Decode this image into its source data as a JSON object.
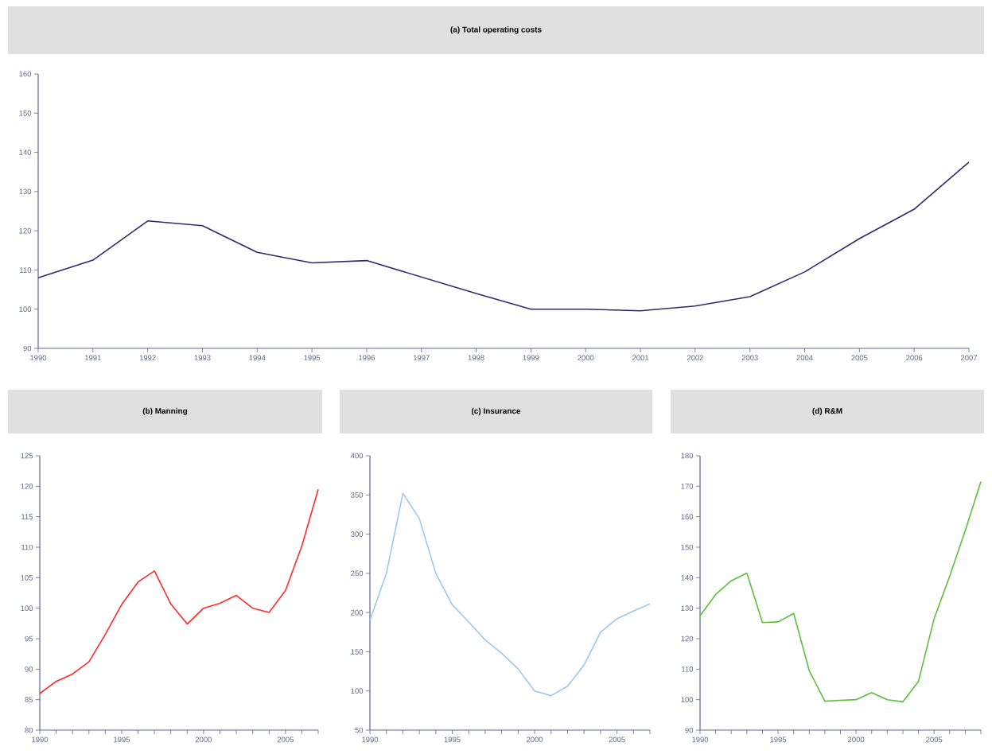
{
  "chart_data": [
    {
      "type": "line",
      "title": "(a) Total operating costs",
      "color": "#2e2a6e",
      "x": [
        1990,
        1991,
        1992,
        1993,
        1994,
        1995,
        1996,
        1997,
        1998,
        1999,
        2000,
        2001,
        2002,
        2003,
        2004,
        2005,
        2006,
        2007
      ],
      "values": [
        108,
        112.5,
        122.5,
        121.3,
        114.5,
        111.8,
        112.4,
        108.2,
        104,
        100,
        100,
        99.6,
        100.8,
        103.2,
        109.5,
        118,
        125.5,
        137.5
      ],
      "xlim": [
        1990,
        2007
      ],
      "xticks": [
        1990,
        1991,
        1992,
        1993,
        1994,
        1995,
        1996,
        1997,
        1998,
        1999,
        2000,
        2001,
        2002,
        2003,
        2004,
        2005,
        2006,
        2007
      ],
      "ylim": [
        90,
        160
      ],
      "yticks": [
        90,
        100,
        110,
        120,
        130,
        140,
        150,
        160
      ]
    },
    {
      "type": "line",
      "title": "(b) Manning",
      "color": "#ff2a2a",
      "x": [
        1990,
        1991,
        1992,
        1993,
        1994,
        1995,
        1996,
        1997,
        1998,
        1999,
        2000,
        2001,
        2002,
        2003,
        2004,
        2005,
        2006,
        2007
      ],
      "values": [
        86,
        88,
        89.2,
        91.2,
        95.7,
        100.6,
        104.3,
        106.1,
        100.7,
        97.4,
        100,
        100.8,
        102.1,
        100,
        99.3,
        102.9,
        110.2,
        119.5
      ],
      "xlim": [
        1990,
        2007
      ],
      "xticks": [
        1990,
        {
          "value": 1991,
          "label": null
        },
        {
          "value": 1992,
          "label": null
        },
        {
          "value": 1993,
          "label": null
        },
        {
          "value": 1994,
          "label": null
        },
        1995,
        {
          "value": 1996,
          "label": null
        },
        {
          "value": 1997,
          "label": null
        },
        {
          "value": 1998,
          "label": null
        },
        {
          "value": 1999,
          "label": null
        },
        2000,
        {
          "value": 2001,
          "label": null
        },
        {
          "value": 2002,
          "label": null
        },
        {
          "value": 2003,
          "label": null
        },
        {
          "value": 2004,
          "label": null
        },
        2005,
        {
          "value": 2006,
          "label": null
        },
        {
          "value": 2007,
          "label": null
        }
      ],
      "ylim": [
        80,
        125
      ],
      "yticks": [
        80,
        85,
        90,
        95,
        100,
        105,
        110,
        115,
        120,
        125
      ]
    },
    {
      "type": "line",
      "title": "(c) Insurance",
      "color": "#9cc8f0",
      "x": [
        1990,
        1991,
        1992,
        1993,
        1994,
        1995,
        1996,
        1997,
        1998,
        1999,
        2000,
        2001,
        2002,
        2003,
        2004,
        2005,
        2006,
        2007
      ],
      "values": [
        190,
        250,
        352,
        320,
        250,
        210,
        188,
        165,
        148,
        128,
        100,
        94,
        106,
        133,
        175,
        192,
        202,
        211
      ],
      "xlim": [
        1990,
        2007
      ],
      "xticks": [
        1990,
        {
          "value": 1991,
          "label": null
        },
        {
          "value": 1992,
          "label": null
        },
        {
          "value": 1993,
          "label": null
        },
        {
          "value": 1994,
          "label": null
        },
        1995,
        {
          "value": 1996,
          "label": null
        },
        {
          "value": 1997,
          "label": null
        },
        {
          "value": 1998,
          "label": null
        },
        {
          "value": 1999,
          "label": null
        },
        2000,
        {
          "value": 2001,
          "label": null
        },
        {
          "value": 2002,
          "label": null
        },
        {
          "value": 2003,
          "label": null
        },
        {
          "value": 2004,
          "label": null
        },
        2005,
        {
          "value": 2006,
          "label": null
        },
        {
          "value": 2007,
          "label": null
        }
      ],
      "ylim": [
        50,
        400
      ],
      "yticks": [
        50,
        100,
        150,
        200,
        250,
        300,
        350,
        400
      ]
    },
    {
      "type": "line",
      "title": "(d) R&M",
      "color": "#5cbf3a",
      "x": [
        1990,
        1991,
        1992,
        1993,
        1994,
        1995,
        1996,
        1997,
        1998,
        1999,
        2000,
        2001,
        2002,
        2003,
        2004,
        2005,
        2006,
        2007,
        2008
      ],
      "values": [
        127.5,
        134.5,
        139,
        141.5,
        125.3,
        125.5,
        128.3,
        109.5,
        99.5,
        99.8,
        100,
        102.3,
        100,
        99.3,
        106,
        126.5,
        140.5,
        155.5,
        171.5
      ],
      "xlim": [
        1990,
        2008
      ],
      "xticks": [
        1990,
        {
          "value": 1991,
          "label": null
        },
        {
          "value": 1992,
          "label": null
        },
        {
          "value": 1993,
          "label": null
        },
        {
          "value": 1994,
          "label": null
        },
        1995,
        {
          "value": 1996,
          "label": null
        },
        {
          "value": 1997,
          "label": null
        },
        {
          "value": 1998,
          "label": null
        },
        {
          "value": 1999,
          "label": null
        },
        2000,
        {
          "value": 2001,
          "label": null
        },
        {
          "value": 2002,
          "label": null
        },
        {
          "value": 2003,
          "label": null
        },
        {
          "value": 2004,
          "label": null
        },
        2005,
        {
          "value": 2006,
          "label": null
        },
        {
          "value": 2007,
          "label": null
        },
        {
          "value": 2008,
          "label": null
        }
      ],
      "ylim": [
        90,
        180
      ],
      "yticks": [
        90,
        100,
        110,
        120,
        130,
        140,
        150,
        160,
        170,
        180
      ]
    }
  ]
}
